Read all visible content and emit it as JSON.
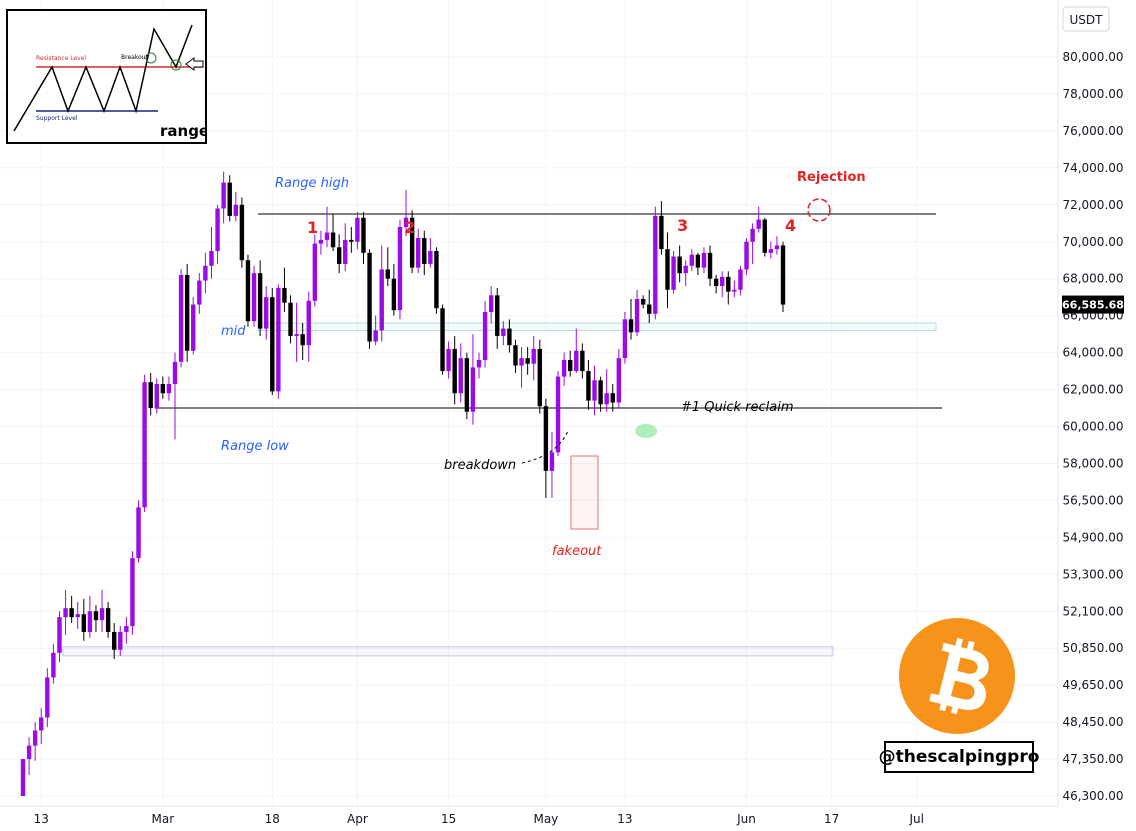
{
  "chart_data": {
    "type": "candlestick",
    "currency_label": "USDT",
    "last_price_label": "66,585.68",
    "y_ticks": [
      {
        "value": 80000,
        "label": "80,000.00"
      },
      {
        "value": 78000,
        "label": "78,000.00"
      },
      {
        "value": 76000,
        "label": "76,000.00"
      },
      {
        "value": 74000,
        "label": "74,000.00"
      },
      {
        "value": 72000,
        "label": "72,000.00"
      },
      {
        "value": 70000,
        "label": "70,000.00"
      },
      {
        "value": 68000,
        "label": "68,000.00"
      },
      {
        "value": 66000,
        "label": "66,000.00"
      },
      {
        "value": 64000,
        "label": "64,000.00"
      },
      {
        "value": 62000,
        "label": "62,000.00"
      },
      {
        "value": 60000,
        "label": "60,000.00"
      },
      {
        "value": 58000,
        "label": "58,000.00"
      },
      {
        "value": 56500,
        "label": "56,500.00"
      },
      {
        "value": 54900,
        "label": "54,900.00"
      },
      {
        "value": 53300,
        "label": "53,300.00"
      },
      {
        "value": 52100,
        "label": "52,100.00"
      },
      {
        "value": 50850,
        "label": "50,850.00"
      },
      {
        "value": 49650,
        "label": "49,650.00"
      },
      {
        "value": 48450,
        "label": "48,450.00"
      },
      {
        "value": 47350,
        "label": "47,350.00"
      },
      {
        "value": 46300,
        "label": "46,300.00"
      }
    ],
    "x_ticks": [
      {
        "index": 3,
        "label": "13"
      },
      {
        "index": 23,
        "label": "Mar"
      },
      {
        "index": 41,
        "label": "18"
      },
      {
        "index": 55,
        "label": "Apr"
      },
      {
        "index": 70,
        "label": "15"
      },
      {
        "index": 86,
        "label": "May"
      },
      {
        "index": 99,
        "label": "13"
      },
      {
        "index": 119,
        "label": "Jun"
      },
      {
        "index": 133,
        "label": "17"
      },
      {
        "index": 147,
        "label": "Jul"
      }
    ],
    "levels": {
      "range_high": 71500,
      "range_low": 61000,
      "mid_zone": [
        65200,
        65600
      ],
      "lower_zone": [
        50600,
        50900
      ]
    },
    "candles": [
      [
        46300,
        47350,
        46300,
        47350
      ],
      [
        47350,
        48000,
        46900,
        47750
      ],
      [
        47750,
        48450,
        47300,
        48200
      ],
      [
        48200,
        48900,
        47800,
        48600
      ],
      [
        48600,
        50200,
        48300,
        49900
      ],
      [
        49900,
        51000,
        49700,
        50700
      ],
      [
        50700,
        52100,
        50400,
        51900
      ],
      [
        51900,
        52800,
        51300,
        52200
      ],
      [
        52200,
        52600,
        51700,
        51900
      ],
      [
        51900,
        52400,
        51500,
        52000
      ],
      [
        52000,
        52500,
        51100,
        51400
      ],
      [
        51400,
        52600,
        51200,
        52100
      ],
      [
        52100,
        52300,
        51400,
        51800
      ],
      [
        51800,
        52800,
        51400,
        52200
      ],
      [
        52200,
        52400,
        51200,
        51400
      ],
      [
        51400,
        51700,
        50500,
        50800
      ],
      [
        50800,
        51600,
        50600,
        51400
      ],
      [
        51400,
        51900,
        51000,
        51600
      ],
      [
        51600,
        54300,
        51300,
        54000
      ],
      [
        54000,
        56500,
        53800,
        56200
      ],
      [
        56200,
        62800,
        56000,
        62400
      ],
      [
        62400,
        62900,
        60600,
        61000
      ],
      [
        61000,
        62600,
        60700,
        62300
      ],
      [
        62300,
        62700,
        61500,
        61800
      ],
      [
        61800,
        62700,
        61400,
        62300
      ],
      [
        62300,
        64000,
        59300,
        63500
      ],
      [
        63500,
        68500,
        63200,
        68200
      ],
      [
        68200,
        68800,
        63500,
        64100
      ],
      [
        64100,
        67000,
        63900,
        66600
      ],
      [
        66600,
        68300,
        66100,
        67900
      ],
      [
        67900,
        69400,
        67200,
        68700
      ],
      [
        68700,
        70800,
        68000,
        69500
      ],
      [
        69500,
        72000,
        68800,
        71800
      ],
      [
        71800,
        73800,
        71000,
        73200
      ],
      [
        73200,
        73600,
        71100,
        71400
      ],
      [
        71400,
        72700,
        71100,
        72000
      ],
      [
        72000,
        72400,
        68600,
        69000
      ],
      [
        69000,
        69300,
        65400,
        65700
      ],
      [
        65700,
        68700,
        65400,
        68300
      ],
      [
        68300,
        69000,
        64900,
        65300
      ],
      [
        65300,
        67600,
        64700,
        67000
      ],
      [
        67000,
        67500,
        61700,
        61900
      ],
      [
        61900,
        67700,
        61500,
        67500
      ],
      [
        67500,
        68600,
        66200,
        66700
      ],
      [
        66700,
        67100,
        64500,
        64900
      ],
      [
        64900,
        66700,
        63500,
        65000
      ],
      [
        65000,
        65600,
        63600,
        64400
      ],
      [
        64400,
        67300,
        63500,
        66800
      ],
      [
        66800,
        70400,
        66500,
        69900
      ],
      [
        69900,
        70600,
        69300,
        70100
      ],
      [
        70100,
        71900,
        69700,
        70500
      ],
      [
        70500,
        71500,
        69500,
        69700
      ],
      [
        69700,
        70400,
        68300,
        68800
      ],
      [
        68800,
        71000,
        68400,
        70100
      ],
      [
        70100,
        70800,
        69400,
        70000
      ],
      [
        70000,
        71600,
        69600,
        71300
      ],
      [
        71300,
        71600,
        68800,
        69400
      ],
      [
        69400,
        69600,
        64200,
        64600
      ],
      [
        64600,
        66000,
        64400,
        65200
      ],
      [
        65200,
        69800,
        64600,
        68500
      ],
      [
        68500,
        69700,
        67600,
        68000
      ],
      [
        68000,
        68800,
        66000,
        66300
      ],
      [
        66300,
        71200,
        65800,
        70800
      ],
      [
        70800,
        72800,
        70300,
        71300
      ],
      [
        71300,
        71700,
        68300,
        68600
      ],
      [
        68600,
        70700,
        68300,
        70200
      ],
      [
        70200,
        70600,
        68200,
        68800
      ],
      [
        68800,
        70200,
        68600,
        69500
      ],
      [
        69500,
        69700,
        66100,
        66400
      ],
      [
        66400,
        66600,
        62800,
        63000
      ],
      [
        63000,
        64600,
        62600,
        64200
      ],
      [
        64200,
        64900,
        61200,
        61800
      ],
      [
        61800,
        64500,
        61300,
        63700
      ],
      [
        63700,
        64000,
        60400,
        60800
      ],
      [
        60800,
        65000,
        60100,
        63200
      ],
      [
        63200,
        64000,
        62600,
        63600
      ],
      [
        63600,
        66800,
        63200,
        66200
      ],
      [
        66200,
        67600,
        65600,
        67100
      ],
      [
        67100,
        67500,
        64200,
        64900
      ],
      [
        64900,
        65700,
        64400,
        65300
      ],
      [
        65300,
        65800,
        64000,
        64400
      ],
      [
        64400,
        64700,
        62900,
        63300
      ],
      [
        63300,
        64300,
        62100,
        63700
      ],
      [
        63700,
        64300,
        62800,
        63400
      ],
      [
        63400,
        64900,
        62500,
        64200
      ],
      [
        64200,
        64700,
        60700,
        61100
      ],
      [
        61100,
        61500,
        56600,
        57700
      ],
      [
        57700,
        59700,
        56600,
        58600
      ],
      [
        58600,
        63000,
        58400,
        62700
      ],
      [
        62700,
        64000,
        62200,
        63600
      ],
      [
        63600,
        64100,
        62700,
        63000
      ],
      [
        63000,
        65300,
        62900,
        64100
      ],
      [
        64100,
        64500,
        62600,
        63000
      ],
      [
        63000,
        63600,
        60900,
        61400
      ],
      [
        61400,
        63300,
        60600,
        62500
      ],
      [
        62500,
        62700,
        60800,
        61200
      ],
      [
        61200,
        63100,
        60800,
        61800
      ],
      [
        61800,
        62300,
        60800,
        61300
      ],
      [
        61300,
        64200,
        61000,
        63700
      ],
      [
        63700,
        66200,
        63400,
        65800
      ],
      [
        65800,
        66900,
        64700,
        65100
      ],
      [
        65100,
        67400,
        64900,
        66900
      ],
      [
        66900,
        67100,
        66400,
        66600
      ],
      [
        66600,
        67400,
        65600,
        66100
      ],
      [
        66100,
        71900,
        65800,
        71400
      ],
      [
        71400,
        72200,
        69300,
        69600
      ],
      [
        69600,
        70500,
        66400,
        67400
      ],
      [
        67400,
        69500,
        67200,
        69200
      ],
      [
        69200,
        69800,
        67800,
        68300
      ],
      [
        68300,
        69000,
        67600,
        68700
      ],
      [
        68700,
        69600,
        68400,
        69300
      ],
      [
        69300,
        69400,
        68200,
        68600
      ],
      [
        68600,
        69700,
        68300,
        69400
      ],
      [
        69400,
        69800,
        67600,
        68000
      ],
      [
        68000,
        68200,
        67200,
        67600
      ],
      [
        67600,
        68400,
        67000,
        68100
      ],
      [
        68100,
        68400,
        66600,
        67300
      ],
      [
        67300,
        67900,
        67000,
        67400
      ],
      [
        67400,
        68700,
        67100,
        68500
      ],
      [
        68500,
        70200,
        68200,
        70000
      ],
      [
        70000,
        71000,
        68800,
        70700
      ],
      [
        70700,
        71900,
        70500,
        71200
      ],
      [
        71200,
        71300,
        69200,
        69400
      ],
      [
        69400,
        70000,
        69100,
        69600
      ],
      [
        69600,
        70300,
        69300,
        69800
      ],
      [
        69800,
        70000,
        66200,
        66600
      ]
    ],
    "annotations": {
      "range_high": "Range high",
      "range_low": "Range low",
      "mid": "mid",
      "breakdown": "breakdown",
      "fakeout": "fakeout",
      "quick_reclaim": "#1 Quick reclaim",
      "rejection": "Rejection",
      "touches": [
        "1",
        "2",
        "3",
        "4"
      ]
    },
    "inset": {
      "resistance_label": "Resistance Level",
      "support_label": "Support Level",
      "breakout_label": "Breakout",
      "title": "range"
    }
  },
  "watermark": {
    "handle": "@thescalpingpro",
    "logo": "bitcoin-icon",
    "logo_color": "#f7931a"
  },
  "colors": {
    "bull": "#9a0be6",
    "bear": "#000000",
    "accent_red": "#e52121",
    "accent_blue": "#2962ff"
  }
}
